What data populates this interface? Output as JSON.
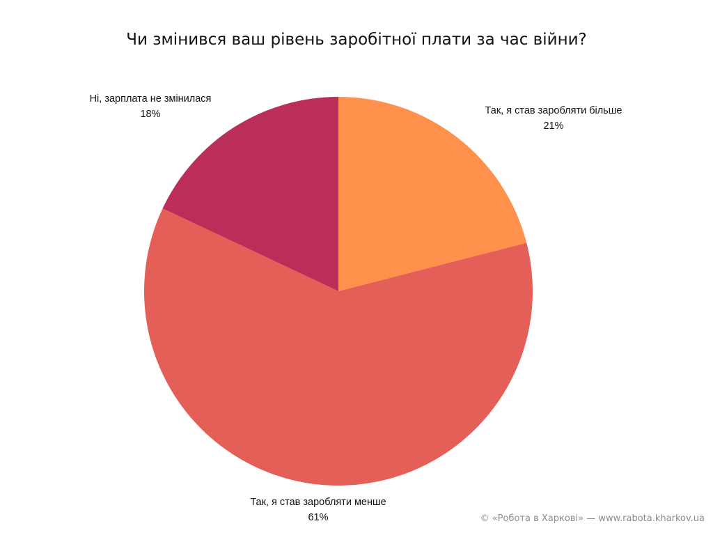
{
  "chart_data": {
    "type": "pie",
    "title": "Чи змінився ваш рівень заробітної плати за час війни?",
    "slices": [
      {
        "label": "Так, я став заробляти більше",
        "value": 21,
        "value_label": "21%",
        "color": "#FF914D"
      },
      {
        "label": "Так, я став заробляти менше",
        "value": 61,
        "value_label": "61%",
        "color": "#E35F57"
      },
      {
        "label": "Ні, зарплата не змінилася",
        "value": 18,
        "value_label": "18%",
        "color": "#BB2E5A"
      }
    ],
    "start_angle": "12 o'clock",
    "direction": "clockwise",
    "legend": "none"
  },
  "watermark": "© «Робота в Харкові» — www.rabota.kharkov.ua"
}
